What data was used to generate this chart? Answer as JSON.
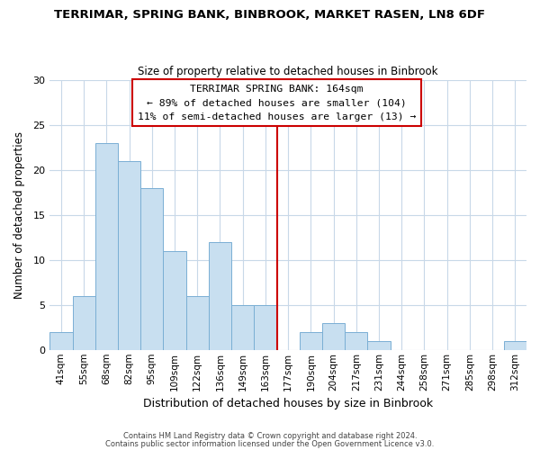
{
  "title": "TERRIMAR, SPRING BANK, BINBROOK, MARKET RASEN, LN8 6DF",
  "subtitle": "Size of property relative to detached houses in Binbrook",
  "xlabel": "Distribution of detached houses by size in Binbrook",
  "ylabel": "Number of detached properties",
  "bar_color": "#c8dff0",
  "bar_edge_color": "#7aafd4",
  "categories": [
    "41sqm",
    "55sqm",
    "68sqm",
    "82sqm",
    "95sqm",
    "109sqm",
    "122sqm",
    "136sqm",
    "149sqm",
    "163sqm",
    "177sqm",
    "190sqm",
    "204sqm",
    "217sqm",
    "231sqm",
    "244sqm",
    "258sqm",
    "271sqm",
    "285sqm",
    "298sqm",
    "312sqm"
  ],
  "values": [
    2,
    6,
    23,
    21,
    18,
    11,
    6,
    12,
    5,
    5,
    0,
    2,
    3,
    2,
    1,
    0,
    0,
    0,
    0,
    0,
    1
  ],
  "vline_x": 9.5,
  "vline_color": "#cc0000",
  "annotation_box_title": "TERRIMAR SPRING BANK: 164sqm",
  "annotation_line1": "← 89% of detached houses are smaller (104)",
  "annotation_line2": "11% of semi-detached houses are larger (13) →",
  "ylim": [
    0,
    30
  ],
  "yticks": [
    0,
    5,
    10,
    15,
    20,
    25,
    30
  ],
  "footnote1": "Contains HM Land Registry data © Crown copyright and database right 2024.",
  "footnote2": "Contains public sector information licensed under the Open Government Licence v3.0.",
  "background_color": "#ffffff",
  "grid_color": "#c8d8e8"
}
